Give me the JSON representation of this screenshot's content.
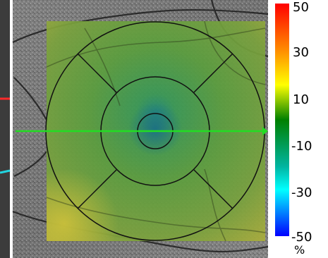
{
  "viewer": {
    "overlay": "thickness-change-map",
    "grid": "etdrs-grid",
    "scan_line_color": "#22dd22"
  },
  "colorbar": {
    "ticks": [
      "50",
      "30",
      "10",
      "-10",
      "-30",
      "-50"
    ],
    "unit": "%",
    "colors": [
      "#ff0000",
      "#ff8c00",
      "#ffff00",
      "#008000",
      "#00ffff",
      "#0000ff"
    ]
  }
}
